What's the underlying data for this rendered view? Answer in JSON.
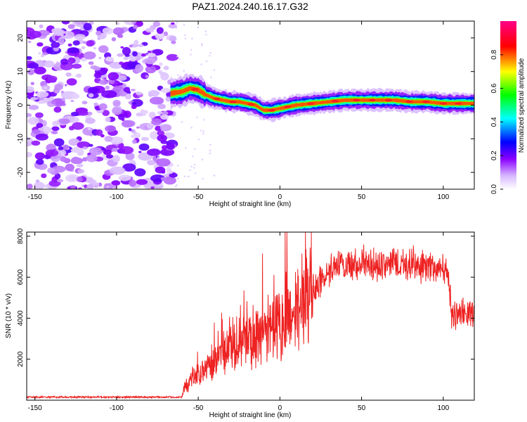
{
  "chart_data": [
    {
      "type": "heatmap",
      "title": "PAZ1.2024.240.16.17.G32",
      "xlabel": "Height of straight line (km)",
      "ylabel": "Frequency (Hz)",
      "xlim": [
        -155,
        119
      ],
      "ylim": [
        -25,
        25
      ],
      "xticks": [
        -150,
        -100,
        -50,
        0,
        50,
        100
      ],
      "yticks": [
        -20,
        -10,
        0,
        10,
        20
      ],
      "colorbar": {
        "label": "Normalized spectral amplitude",
        "range": [
          0,
          1
        ],
        "ticks": [
          0.0,
          0.2,
          0.4,
          0.6,
          0.8
        ],
        "colormap": [
          "#ffffff",
          "#c89bff",
          "#7a00ff",
          "#0000ff",
          "#00ffff",
          "#00ff00",
          "#ffff00",
          "#ff0000",
          "#ff0088"
        ]
      },
      "noise_region_km": [
        -155,
        -65
      ],
      "signal_ridge": {
        "x": [
          -67,
          -60,
          -55,
          -50,
          -45,
          -40,
          -35,
          -30,
          -25,
          -20,
          -15,
          -10,
          -5,
          0,
          5,
          10,
          20,
          30,
          40,
          50,
          60,
          70,
          80,
          90,
          100,
          110,
          119
        ],
        "y": [
          3.5,
          4.0,
          5.0,
          4.5,
          3.0,
          2.0,
          1.5,
          1.0,
          1.0,
          0.5,
          0.0,
          -1.5,
          -1.5,
          -1.0,
          -0.5,
          0.0,
          0.5,
          1.0,
          1.5,
          1.5,
          1.5,
          1.5,
          1.0,
          1.0,
          0.5,
          0.5,
          0.5
        ]
      }
    },
    {
      "type": "line",
      "xlabel": "Height of straight line (km)",
      "ylabel": "SNR (10 * v/v)",
      "xlim": [
        -155,
        119
      ],
      "ylim": [
        0,
        8200
      ],
      "xticks": [
        -150,
        -100,
        -50,
        0,
        50,
        100
      ],
      "yticks": [
        2000,
        4000,
        6000,
        8000
      ],
      "color": "#ee2222",
      "envelope": {
        "x": [
          -155,
          -100,
          -60,
          -58,
          -50,
          -40,
          -30,
          -20,
          -10,
          0,
          10,
          20,
          30,
          40,
          50,
          60,
          70,
          80,
          90,
          100,
          103,
          105,
          110,
          119
        ],
        "y": [
          150,
          150,
          150,
          700,
          1300,
          1900,
          2700,
          3000,
          3400,
          3900,
          4400,
          5300,
          6300,
          6600,
          6700,
          6600,
          6700,
          6600,
          6500,
          6400,
          6200,
          4300,
          4200,
          4300
        ]
      }
    }
  ]
}
